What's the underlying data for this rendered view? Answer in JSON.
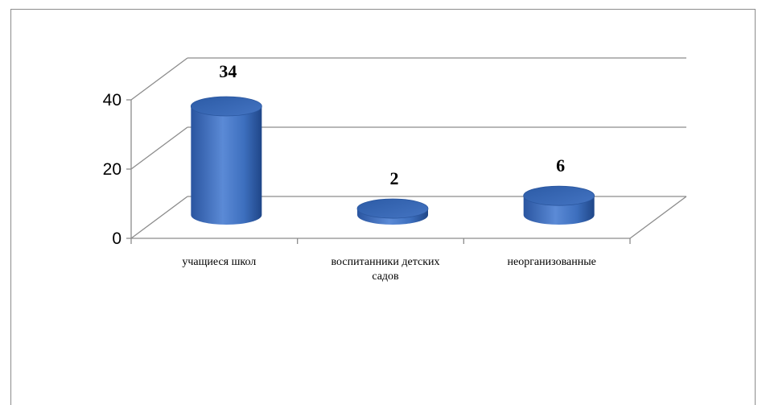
{
  "chart_data": {
    "type": "bar",
    "style": "3d-cylinder",
    "categories": [
      [
        "учащиеся школ"
      ],
      [
        "воспитанники детских",
        "садов"
      ],
      [
        "неорганизованные"
      ]
    ],
    "values": [
      34,
      2,
      6
    ],
    "data_labels": [
      "34",
      "2",
      "6"
    ],
    "yticks": [
      "0",
      "20",
      "40"
    ],
    "ylim": [
      0,
      40
    ],
    "grid": true,
    "legend": "none",
    "title": "",
    "xlabel": "",
    "ylabel": "",
    "colors": {
      "bar": "#3f72bd",
      "bar_light": "#6e9be0",
      "bar_dark": "#22498f",
      "grid": "#8c8c8c"
    }
  }
}
